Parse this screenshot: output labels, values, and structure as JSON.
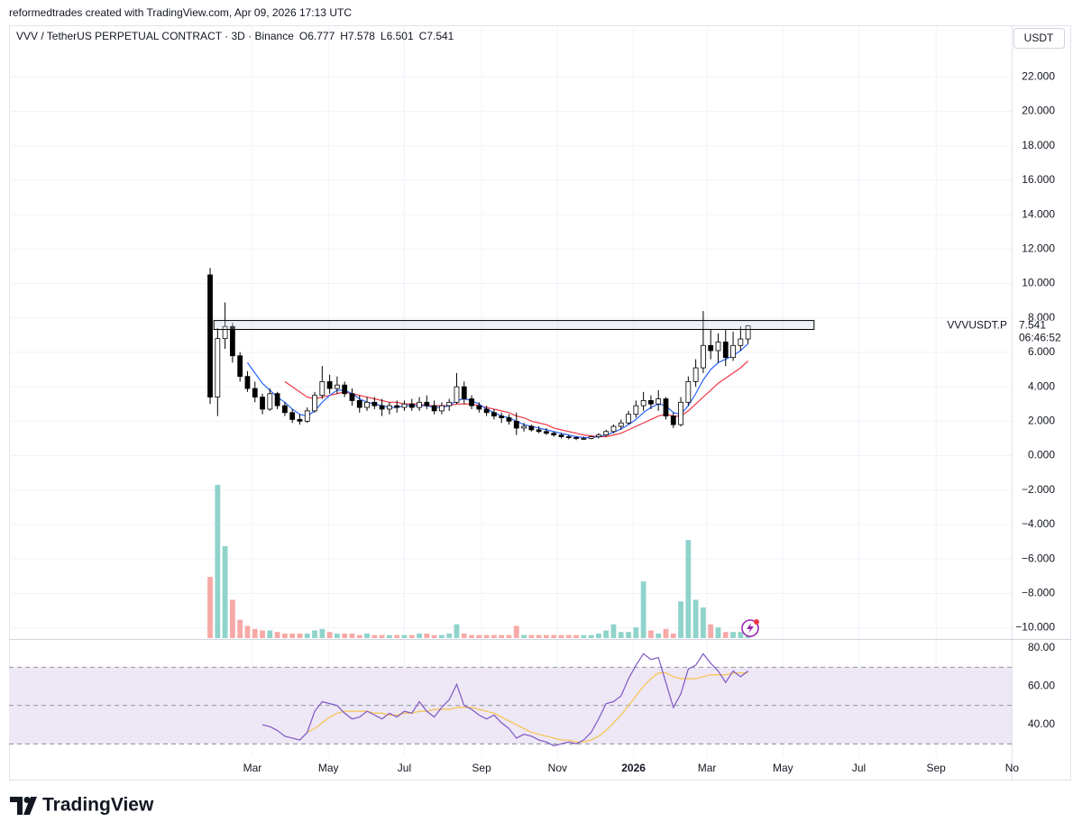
{
  "header": {
    "credit": "reformedtrades created with TradingView.com, Apr 09, 2026 17:13 UTC"
  },
  "footer": {
    "brand": "TradingView"
  },
  "chart_data": {
    "type": "candlestick",
    "title": "VVV / TetherUS PERPETUAL CONTRACT · 3D · Binance",
    "legend": [
      "O6.777",
      "H7.578",
      "L6.501",
      "C7.541"
    ],
    "currency": "USDT",
    "symbol_label": "VVVUSDT.P",
    "last_price": 7.541,
    "countdown": "06:46:52",
    "xlim": [
      -195.5,
      609.7
    ],
    "xticks": [
      {
        "value": 0,
        "label": "Mar"
      },
      {
        "value": 61,
        "label": "May"
      },
      {
        "value": 122,
        "label": "Jul"
      },
      {
        "value": 184,
        "label": "Sep"
      },
      {
        "value": 245,
        "label": "Nov"
      },
      {
        "value": 306,
        "label": "2026"
      },
      {
        "value": 365,
        "label": "Mar"
      },
      {
        "value": 426,
        "label": "May"
      },
      {
        "value": 487,
        "label": "Jul"
      },
      {
        "value": 549,
        "label": "Sep"
      },
      {
        "value": 610,
        "label": "No"
      }
    ],
    "ylim": [
      -10.6,
      25
    ],
    "yticks": [
      {
        "value": -10,
        "label": "−10.000"
      },
      {
        "value": -8,
        "label": "−8.000"
      },
      {
        "value": -6,
        "label": "−6.000"
      },
      {
        "value": -4,
        "label": "−4.000"
      },
      {
        "value": -2,
        "label": "−2.000"
      },
      {
        "value": 0,
        "label": "0.000"
      },
      {
        "value": 2,
        "label": "2.000"
      },
      {
        "value": 4,
        "label": "4.000"
      },
      {
        "value": 6,
        "label": "6.000"
      },
      {
        "value": 8,
        "label": "8.000"
      },
      {
        "value": 10,
        "label": "10.000"
      },
      {
        "value": 12,
        "label": "12.000"
      },
      {
        "value": 14,
        "label": "14.000"
      },
      {
        "value": 16,
        "label": "16.000"
      },
      {
        "value": 18,
        "label": "18.000"
      },
      {
        "value": 20,
        "label": "20.000"
      },
      {
        "value": 22,
        "label": "22.000"
      }
    ],
    "grid": true,
    "up_color": "#ffffff",
    "down_color": "#000000",
    "wick_color": "#000000",
    "x": [
      -34,
      -28,
      -22,
      -16,
      -10,
      -4,
      2,
      8,
      14,
      20,
      26,
      32,
      38,
      44,
      50,
      56,
      62,
      68,
      74,
      80,
      86,
      92,
      98,
      104,
      110,
      116,
      122,
      128,
      134,
      140,
      146,
      152,
      158,
      164,
      170,
      176,
      182,
      188,
      194,
      200,
      206,
      212,
      218,
      224,
      230,
      236,
      242,
      248,
      254,
      260,
      266,
      272,
      278,
      284,
      290,
      296,
      302,
      308,
      314,
      320,
      326,
      332,
      338,
      344,
      350,
      356,
      362,
      368,
      374,
      380,
      386,
      392,
      398
    ],
    "open": [
      10.5,
      3.4,
      6.8,
      7.5,
      5.8,
      4.6,
      3.9,
      3.4,
      2.7,
      3.6,
      2.9,
      2.5,
      2.1,
      2.0,
      2.6,
      3.5,
      4.3,
      3.9,
      4.1,
      3.6,
      3.2,
      2.8,
      3.1,
      2.9,
      2.7,
      2.9,
      2.8,
      3.0,
      2.8,
      3.1,
      2.9,
      2.6,
      2.9,
      3.1,
      4.0,
      3.3,
      2.9,
      2.7,
      2.5,
      2.3,
      2.2,
      2.0,
      1.6,
      1.7,
      1.5,
      1.4,
      1.3,
      1.2,
      1.1,
      1.05,
      1.0,
      1.0,
      1.1,
      1.2,
      1.4,
      1.7,
      1.9,
      2.4,
      2.9,
      3.2,
      3.0,
      3.3,
      2.3,
      1.8,
      3.1,
      4.3,
      5.1,
      6.4,
      6.1,
      6.6,
      5.7,
      6.4,
      6.777
    ],
    "high": [
      10.9,
      7.4,
      8.9,
      7.7,
      6.0,
      4.9,
      4.3,
      3.6,
      3.9,
      3.7,
      3.1,
      2.7,
      2.4,
      2.8,
      3.7,
      5.2,
      4.7,
      4.6,
      4.3,
      3.9,
      3.5,
      3.4,
      3.4,
      3.3,
      3.1,
      3.2,
      3.2,
      3.3,
      3.4,
      3.5,
      3.2,
      3.1,
      3.3,
      4.8,
      4.3,
      3.5,
      3.1,
      2.9,
      2.7,
      2.5,
      2.4,
      2.5,
      1.9,
      1.8,
      1.7,
      1.6,
      1.4,
      1.3,
      1.2,
      1.1,
      1.1,
      1.15,
      1.3,
      1.5,
      1.8,
      2.1,
      2.6,
      3.2,
      3.7,
      3.5,
      3.8,
      3.4,
      2.5,
      3.4,
      4.6,
      5.6,
      8.4,
      7.3,
      7.1,
      7.3,
      7.2,
      7.5,
      7.578
    ],
    "low": [
      3.0,
      2.3,
      6.2,
      5.4,
      4.3,
      3.7,
      3.1,
      2.4,
      2.6,
      2.7,
      2.3,
      1.9,
      1.8,
      1.9,
      2.5,
      3.3,
      3.6,
      3.6,
      3.4,
      2.9,
      2.5,
      2.6,
      2.7,
      2.3,
      2.4,
      2.5,
      2.6,
      2.6,
      2.6,
      2.7,
      2.4,
      2.4,
      2.6,
      3.0,
      3.0,
      2.7,
      2.5,
      2.3,
      2.1,
      1.9,
      1.8,
      1.2,
      1.4,
      1.4,
      1.3,
      1.2,
      1.1,
      1.0,
      0.95,
      0.9,
      0.92,
      0.95,
      1.0,
      1.1,
      1.3,
      1.5,
      1.8,
      2.2,
      2.6,
      2.7,
      2.6,
      2.1,
      1.6,
      1.7,
      2.9,
      4.0,
      4.8,
      5.6,
      5.4,
      5.2,
      5.5,
      6.1,
      6.501
    ],
    "close": [
      3.4,
      6.8,
      7.5,
      5.8,
      4.6,
      3.9,
      3.4,
      2.7,
      3.6,
      2.9,
      2.5,
      2.1,
      2.0,
      2.6,
      3.5,
      4.3,
      3.9,
      4.1,
      3.6,
      3.2,
      2.8,
      3.1,
      2.9,
      2.7,
      2.9,
      2.8,
      3.0,
      2.8,
      3.1,
      2.9,
      2.6,
      2.9,
      3.1,
      4.0,
      3.3,
      2.9,
      2.7,
      2.5,
      2.3,
      2.2,
      2.0,
      1.6,
      1.7,
      1.5,
      1.4,
      1.3,
      1.2,
      1.1,
      1.05,
      1.0,
      1.0,
      1.1,
      1.2,
      1.4,
      1.7,
      1.9,
      2.4,
      2.9,
      3.2,
      3.0,
      3.3,
      2.3,
      1.8,
      3.1,
      4.3,
      5.1,
      6.4,
      6.1,
      6.6,
      5.7,
      6.4,
      6.777,
      7.541
    ],
    "volume": [
      40,
      100,
      60,
      25,
      12,
      8,
      6,
      5,
      5,
      4,
      3,
      3,
      3,
      3,
      5,
      6,
      4,
      3,
      3,
      3,
      2,
      3,
      2,
      2,
      2,
      2,
      2,
      2,
      3,
      3,
      2,
      2,
      3,
      9,
      3,
      2,
      2,
      2,
      2,
      2,
      2,
      8,
      2,
      2,
      2,
      2,
      2,
      2,
      2,
      2,
      2,
      2,
      3,
      5,
      9,
      4,
      4,
      7,
      37,
      5,
      3,
      6,
      3,
      24,
      64,
      25,
      20,
      9,
      7,
      4,
      4,
      4,
      3
    ],
    "vlim": [
      0,
      100
    ],
    "volume_up_color": "#8fd3cb",
    "volume_down_color": "#f7a9a7",
    "ma_fast": {
      "color": "#2962ff",
      "values": [
        null,
        null,
        null,
        null,
        null,
        5.4,
        4.8,
        4.2,
        3.8,
        3.4,
        3.1,
        2.7,
        2.4,
        2.3,
        2.6,
        3.1,
        3.5,
        3.8,
        3.8,
        3.6,
        3.3,
        3.1,
        3.0,
        2.9,
        2.8,
        2.8,
        2.9,
        2.9,
        2.9,
        2.9,
        2.8,
        2.8,
        2.9,
        3.2,
        3.3,
        3.2,
        3.0,
        2.7,
        2.5,
        2.3,
        2.2,
        2.0,
        1.8,
        1.7,
        1.6,
        1.5,
        1.4,
        1.3,
        1.2,
        1.1,
        1.05,
        1.05,
        1.1,
        1.2,
        1.35,
        1.55,
        1.8,
        2.1,
        2.5,
        2.8,
        3.0,
        2.9,
        2.5,
        2.4,
        2.9,
        3.6,
        4.4,
        5.0,
        5.4,
        5.6,
        5.8,
        6.1,
        6.5
      ]
    },
    "ma_slow": {
      "color": "#f23645",
      "values": [
        null,
        null,
        null,
        null,
        null,
        null,
        null,
        null,
        null,
        null,
        4.3,
        4.0,
        3.7,
        3.4,
        3.3,
        3.4,
        3.5,
        3.6,
        3.7,
        3.6,
        3.5,
        3.4,
        3.3,
        3.2,
        3.1,
        3.1,
        3.0,
        3.0,
        3.0,
        2.9,
        2.9,
        2.9,
        2.9,
        3.0,
        3.0,
        3.0,
        2.9,
        2.8,
        2.7,
        2.6,
        2.5,
        2.3,
        2.2,
        2.0,
        1.9,
        1.8,
        1.6,
        1.5,
        1.4,
        1.3,
        1.2,
        1.15,
        1.1,
        1.1,
        1.2,
        1.3,
        1.5,
        1.7,
        1.9,
        2.1,
        2.3,
        2.4,
        2.3,
        2.3,
        2.6,
        3.0,
        3.4,
        3.8,
        4.2,
        4.5,
        4.8,
        5.1,
        5.5
      ]
    },
    "zone": {
      "start": -31,
      "end": 451,
      "low": 7.33,
      "high": 7.85
    },
    "rsi_ylim": [
      23.1,
      84.2
    ],
    "rsi_yticks": [
      {
        "value": 80,
        "label": "80.00"
      },
      {
        "value": 60,
        "label": "60.00"
      },
      {
        "value": 40,
        "label": "40.00"
      }
    ],
    "rsi_levels": [
      70,
      50,
      30
    ],
    "rsi_band_color": "#ede7f6",
    "rsi": {
      "color": "#7e57c2",
      "values": [
        null,
        null,
        null,
        null,
        null,
        null,
        null,
        40,
        39,
        37,
        34,
        33,
        32,
        36,
        47,
        52,
        51,
        50,
        46,
        43,
        44,
        47,
        45,
        43,
        46,
        44,
        47,
        46,
        52,
        47,
        44,
        49,
        53,
        61,
        50,
        48,
        45,
        43,
        45,
        41,
        38,
        33,
        35,
        34,
        32,
        31,
        29,
        30,
        31,
        30,
        32,
        36,
        43,
        51,
        52,
        55,
        64,
        71,
        77,
        74,
        75,
        62,
        49,
        56,
        69,
        71,
        77,
        72,
        68,
        62,
        68,
        65,
        68
      ]
    },
    "rsi_ma": {
      "color": "#f7c34b",
      "values": [
        null,
        null,
        null,
        null,
        null,
        null,
        null,
        null,
        null,
        null,
        null,
        null,
        null,
        36,
        38,
        41,
        44,
        46,
        47,
        47,
        47,
        47,
        46,
        46,
        45,
        45,
        46,
        46,
        47,
        47,
        48,
        48,
        48,
        49,
        49,
        49,
        48,
        47,
        46,
        44,
        42,
        40,
        38,
        36,
        35,
        34,
        33,
        32,
        32,
        31,
        31,
        32,
        34,
        37,
        41,
        45,
        50,
        55,
        60,
        64,
        67,
        67,
        65,
        64,
        64,
        64,
        65,
        66,
        66,
        66,
        67,
        67,
        67
      ]
    }
  }
}
